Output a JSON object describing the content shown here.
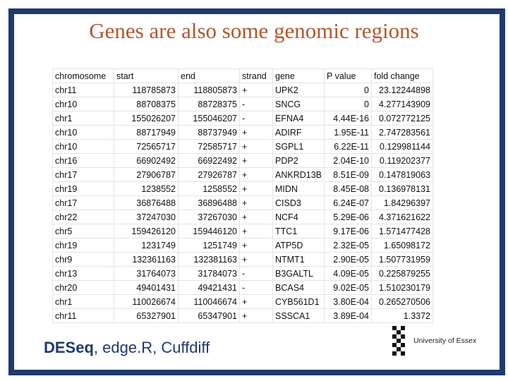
{
  "title": "Genes are also some genomic regions",
  "table": {
    "headers": [
      "chromosome",
      "start",
      "end",
      "strand",
      "gene",
      "P value",
      "fold change"
    ],
    "rows": [
      [
        "chr11",
        "118785873",
        "118805873",
        "+",
        "UPK2",
        "0",
        "23.12244898"
      ],
      [
        "chr10",
        "88708375",
        "88728375",
        "-",
        "SNCG",
        "0",
        "4.277143909"
      ],
      [
        "chr1",
        "155026207",
        "155046207",
        "-",
        "EFNA4",
        "4.44E-16",
        "0.072772125"
      ],
      [
        "chr10",
        "88717949",
        "88737949",
        "+",
        "ADIRF",
        "1.95E-11",
        "2.747283561"
      ],
      [
        "chr10",
        "72565717",
        "72585717",
        "+",
        "SGPL1",
        "6.22E-11",
        "0.129981144"
      ],
      [
        "chr16",
        "66902492",
        "66922492",
        "+",
        "PDP2",
        "2.04E-10",
        "0.119202377"
      ],
      [
        "chr17",
        "27906787",
        "27926787",
        "+",
        "ANKRD13B",
        "8.51E-09",
        "0.147819063"
      ],
      [
        "chr19",
        "1238552",
        "1258552",
        "+",
        "MIDN",
        "8.45E-08",
        "0.136978131"
      ],
      [
        "chr17",
        "36876488",
        "36896488",
        "+",
        "CISD3",
        "6.24E-07",
        "1.84296397"
      ],
      [
        "chr22",
        "37247030",
        "37267030",
        "+",
        "NCF4",
        "5.29E-06",
        "4.371621622"
      ],
      [
        "chr5",
        "159426120",
        "159446120",
        "+",
        "TTC1",
        "9.17E-06",
        "1.571477428"
      ],
      [
        "chr19",
        "1231749",
        "1251749",
        "+",
        "ATP5D",
        "2.32E-05",
        "1.65098172"
      ],
      [
        "chr9",
        "132361163",
        "132381163",
        "+",
        "NTMT1",
        "2.90E-05",
        "1.507731959"
      ],
      [
        "chr13",
        "31764073",
        "31784073",
        "-",
        "B3GALTL",
        "4.09E-05",
        "0.225879255"
      ],
      [
        "chr20",
        "49401431",
        "49421431",
        "-",
        "BCAS4",
        "9.02E-05",
        "1.510230179"
      ],
      [
        "chr1",
        "110026674",
        "110046674",
        "+",
        "CYB561D1",
        "3.80E-04",
        "0.265270506"
      ],
      [
        "chr11",
        "65327901",
        "65347901",
        "+",
        "SSSCA1",
        "3.89E-04",
        "1.3372"
      ]
    ]
  },
  "footer": {
    "methods_bold": "DESeq",
    "methods_rest": ", edge.R, Cuffdiff",
    "logo_text": "University of Essex"
  },
  "colors": {
    "frame": "#1f3a6e",
    "title": "#b5562a",
    "methods": "#1f3a6e"
  }
}
